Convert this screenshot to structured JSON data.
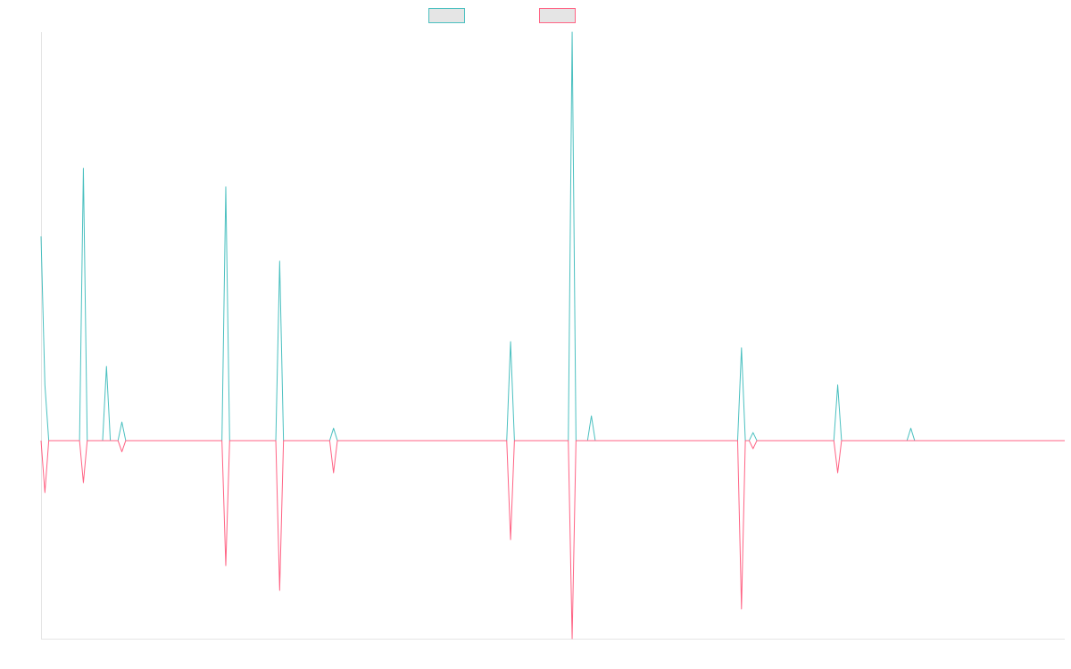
{
  "chart_data": {
    "type": "line",
    "title": "",
    "xlabel": "",
    "ylabel": "",
    "grid": false,
    "legend_position": "top-center",
    "x": [
      0,
      1,
      2,
      3,
      4,
      5,
      6,
      7,
      8,
      9,
      10,
      11,
      12,
      13,
      14,
      15,
      16,
      17,
      18,
      19,
      20,
      21,
      22,
      23,
      24,
      25,
      26,
      27,
      28,
      29,
      30,
      31,
      32,
      33,
      34,
      35,
      36,
      37,
      38,
      39,
      40,
      41,
      42,
      43,
      44,
      45,
      46,
      47,
      48,
      49,
      50,
      51,
      52,
      53,
      54,
      55,
      56,
      57,
      58,
      59,
      60,
      61,
      62,
      63,
      64,
      65,
      66,
      67,
      68,
      69,
      70,
      71,
      72,
      73,
      74,
      75,
      76,
      77,
      78,
      79,
      80,
      81,
      82,
      83,
      84,
      85,
      86,
      87,
      88,
      89,
      90,
      91,
      92,
      93,
      94,
      95,
      96,
      97,
      98,
      99,
      100,
      101,
      102,
      103,
      104,
      105,
      106,
      107,
      108,
      109,
      110,
      111,
      112,
      113,
      114,
      115,
      116,
      117,
      118,
      119,
      120,
      121,
      122,
      123,
      124,
      125,
      126,
      127,
      128,
      129,
      130,
      131,
      132,
      133,
      134,
      135,
      136,
      137,
      138,
      139,
      140,
      141,
      142,
      143,
      144,
      145,
      146,
      147,
      148,
      149,
      150,
      151,
      152,
      153,
      154,
      155,
      156,
      157,
      158,
      159,
      160,
      161,
      162,
      163,
      164,
      165,
      166,
      167,
      168,
      169,
      170,
      171,
      172,
      173,
      174,
      175,
      176,
      177,
      178,
      179,
      180,
      181,
      182,
      183,
      184,
      185,
      186,
      187,
      188,
      189,
      190,
      191,
      192,
      193,
      194,
      195,
      196,
      197,
      198,
      199,
      200,
      201,
      202,
      203,
      204,
      205,
      206,
      207,
      208,
      209,
      210,
      211,
      212,
      213,
      214,
      215,
      216,
      217,
      218,
      219,
      220,
      221,
      222,
      223,
      224,
      225,
      226,
      227,
      228,
      229,
      230,
      231,
      232,
      233,
      234,
      235,
      236,
      237,
      238,
      239,
      240,
      241,
      242,
      243,
      244,
      245,
      246,
      247,
      248,
      249,
      250,
      251,
      252,
      253,
      254,
      255,
      256,
      257,
      258,
      259,
      260,
      261,
      262,
      263,
      264,
      265,
      266
    ],
    "xlim": [
      0,
      266
    ],
    "ylim": [
      -3.2,
      6.6
    ],
    "series": [
      {
        "name": "",
        "color": "#4bc0c0",
        "fill": "#e5e5e5",
        "sparse_values": [
          [
            0,
            3.3
          ],
          [
            1,
            0.9
          ],
          [
            2,
            0
          ],
          [
            10,
            0
          ],
          [
            11,
            4.4
          ],
          [
            12,
            0
          ],
          [
            16,
            0
          ],
          [
            17,
            1.2
          ],
          [
            18,
            0
          ],
          [
            20,
            0
          ],
          [
            21,
            0.3
          ],
          [
            22,
            0
          ],
          [
            47,
            0
          ],
          [
            48,
            4.1
          ],
          [
            49,
            0
          ],
          [
            61,
            0
          ],
          [
            62,
            2.9
          ],
          [
            63,
            0
          ],
          [
            75,
            0
          ],
          [
            76,
            0.2
          ],
          [
            77,
            0
          ],
          [
            121,
            0
          ],
          [
            122,
            1.6
          ],
          [
            123,
            0
          ],
          [
            137,
            0
          ],
          [
            138,
            6.6
          ],
          [
            139,
            0
          ],
          [
            142,
            0
          ],
          [
            143,
            0.4
          ],
          [
            144,
            0
          ],
          [
            181,
            0
          ],
          [
            182,
            1.5
          ],
          [
            183,
            0
          ],
          [
            184,
            0
          ],
          [
            185,
            0.13
          ],
          [
            186,
            0
          ],
          [
            206,
            0
          ],
          [
            207,
            0.9
          ],
          [
            208,
            0
          ],
          [
            225,
            0
          ],
          [
            226,
            0.2
          ],
          [
            227,
            0
          ]
        ]
      },
      {
        "name": "",
        "color": "#ff6384",
        "fill": "#e5e5e5",
        "sparse_values": [
          [
            0,
            0
          ],
          [
            1,
            -0.84
          ],
          [
            2,
            0
          ],
          [
            10,
            0
          ],
          [
            11,
            -0.68
          ],
          [
            12,
            0
          ],
          [
            20,
            0
          ],
          [
            21,
            -0.18
          ],
          [
            22,
            0
          ],
          [
            47,
            0
          ],
          [
            48,
            -2.02
          ],
          [
            49,
            0
          ],
          [
            61,
            0
          ],
          [
            62,
            -2.42
          ],
          [
            63,
            0
          ],
          [
            75,
            0
          ],
          [
            76,
            -0.52
          ],
          [
            77,
            0
          ],
          [
            121,
            0
          ],
          [
            122,
            -1.6
          ],
          [
            123,
            0
          ],
          [
            137,
            0
          ],
          [
            138,
            -3.2
          ],
          [
            139,
            0
          ],
          [
            181,
            0
          ],
          [
            182,
            -2.72
          ],
          [
            183,
            0
          ],
          [
            184,
            0
          ],
          [
            185,
            -0.13
          ],
          [
            186,
            0
          ],
          [
            206,
            0
          ],
          [
            207,
            -0.52
          ],
          [
            208,
            0
          ]
        ]
      }
    ]
  }
}
